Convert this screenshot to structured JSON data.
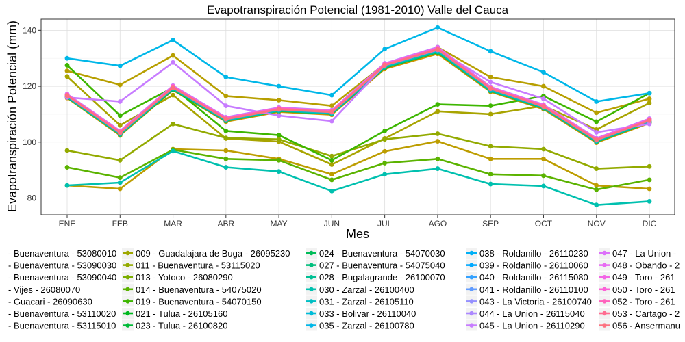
{
  "chart_data": {
    "type": "line",
    "title": "Evapotranspiración Potencial (1981-2010)  Valle del Cauca",
    "xlabel": "Mes",
    "ylabel": "Evapotranspiración Potencial  (mm)",
    "categories": [
      "ENE",
      "FEB",
      "MAR",
      "ABR",
      "MAY",
      "JUN",
      "JUL",
      "AGO",
      "SEP",
      "OCT",
      "NOV",
      "DIC"
    ],
    "yticks": [
      80,
      100,
      120,
      140
    ],
    "ylim": [
      74,
      144
    ],
    "grid": true,
    "legend_position": "bottom",
    "series": [
      {
        "name": "- Buenaventura - 53080010",
        "color": "#F8766D",
        "values": [
          116.5,
          103.2,
          119.4,
          108.0,
          111.5,
          110.5,
          127.2,
          132.8,
          118.8,
          112.5,
          100.5,
          107.5
        ]
      },
      {
        "name": "- Buenaventura - 53090030",
        "color": "#EE8043",
        "values": [
          116.2,
          102.9,
          119.1,
          107.8,
          111.3,
          110.3,
          126.9,
          132.4,
          118.5,
          112.3,
          100.3,
          107.3
        ]
      },
      {
        "name": "- Buenaventura - 53090040",
        "color": "#E08A00",
        "values": [
          116.0,
          102.6,
          118.9,
          107.5,
          111.0,
          110.0,
          126.5,
          132.0,
          118.2,
          112.0,
          100.0,
          107.0
        ]
      },
      {
        "name": "- Vijes - 26080070",
        "color": "#D09400",
        "values": [
          115.8,
          102.4,
          118.6,
          107.3,
          110.8,
          109.8,
          126.2,
          131.6,
          118.0,
          111.8,
          99.8,
          106.8
        ]
      },
      {
        "name": "- Guacari - 26090630",
        "color": "#BD9D00",
        "values": [
          84.5,
          83.3,
          97.5,
          97.0,
          94.0,
          88.5,
          96.7,
          100.3,
          94.0,
          94.0,
          84.5,
          83.3
        ]
      },
      {
        "name": "- Buenaventura - 53110020",
        "color": "#B79F00",
        "values": [
          125.5,
          120.5,
          131.0,
          116.5,
          115.0,
          113.0,
          128.0,
          134.0,
          123.3,
          120.0,
          110.5,
          115.5
        ]
      },
      {
        "name": "- Buenaventura - 53115010",
        "color": "#A8A400",
        "values": [
          123.5,
          106.0,
          116.8,
          101.3,
          100.2,
          92.0,
          101.3,
          111.0,
          110.0,
          113.0,
          104.5,
          114.0
        ]
      },
      {
        "name": "009 - Guadalajara de Buga - 26095230",
        "color": "#9EA700",
        "values": [
          116.3,
          102.9,
          119.2,
          107.9,
          111.4,
          110.4,
          127.0,
          132.5,
          118.6,
          112.4,
          100.4,
          107.4
        ]
      },
      {
        "name": "011 - Buenaventura - 53115020",
        "color": "#93AA00",
        "values": [
          97.0,
          93.5,
          106.5,
          101.5,
          101.0,
          95.0,
          101.0,
          103.0,
          98.5,
          97.5,
          90.5,
          91.3
        ]
      },
      {
        "name": "013 - Yotoco - 26080290",
        "color": "#7CAE00",
        "values": [
          116.1,
          102.8,
          119.0,
          107.7,
          111.2,
          110.2,
          126.8,
          132.3,
          118.4,
          112.2,
          100.2,
          107.2
        ]
      },
      {
        "name": "014 - Buenaventura - 54075020",
        "color": "#5BB300",
        "values": [
          91.0,
          87.3,
          97.3,
          94.0,
          93.5,
          86.5,
          92.5,
          94.0,
          88.5,
          88.0,
          83.0,
          86.5
        ]
      },
      {
        "name": "019 - Buenaventura - 54070150",
        "color": "#3DB600",
        "values": [
          127.5,
          109.5,
          119.5,
          104.0,
          102.5,
          93.5,
          104.0,
          113.5,
          113.0,
          116.5,
          107.3,
          117.5
        ]
      },
      {
        "name": "021 - Tulua - 26105160",
        "color": "#00B81F",
        "values": [
          116.4,
          103.1,
          119.3,
          108.1,
          111.6,
          110.6,
          127.3,
          132.9,
          118.9,
          112.6,
          100.6,
          107.6
        ]
      },
      {
        "name": "023 - Tulua - 26100820",
        "color": "#00BA38",
        "values": [
          116.0,
          102.7,
          118.8,
          107.6,
          111.1,
          110.1,
          126.6,
          132.1,
          118.3,
          112.1,
          100.1,
          107.1
        ]
      },
      {
        "name": "024 - Buenaventura - 54070030",
        "color": "#00BC59",
        "values": [
          116.2,
          103.0,
          119.1,
          107.9,
          111.3,
          110.3,
          127.0,
          132.6,
          118.6,
          112.4,
          100.4,
          107.4
        ]
      },
      {
        "name": "027 - Buenaventura - 54075040",
        "color": "#00BF7D",
        "values": [
          116.5,
          103.3,
          119.5,
          108.2,
          111.7,
          110.7,
          127.4,
          133.0,
          119.0,
          112.7,
          100.7,
          107.7
        ]
      },
      {
        "name": "028 - Bugalagrande - 26100070",
        "color": "#00C094",
        "values": [
          116.1,
          102.8,
          119.0,
          107.7,
          111.2,
          110.2,
          126.8,
          132.3,
          118.4,
          112.2,
          100.2,
          107.2
        ]
      },
      {
        "name": "030 - Zarzal - 26100400",
        "color": "#00C0AF",
        "values": [
          84.5,
          85.5,
          96.8,
          91.0,
          89.5,
          82.5,
          88.5,
          90.5,
          85.0,
          84.3,
          77.5,
          78.8
        ]
      },
      {
        "name": "031 - Zarzal - 26105110",
        "color": "#00BFC4",
        "values": [
          116.3,
          103.0,
          119.2,
          107.9,
          111.4,
          110.4,
          127.1,
          132.7,
          118.7,
          112.5,
          100.5,
          107.5
        ]
      },
      {
        "name": "033 - Bolivar - 26110040",
        "color": "#00BCD8",
        "values": [
          116.4,
          103.2,
          119.4,
          108.1,
          111.6,
          110.6,
          127.3,
          132.9,
          118.9,
          112.6,
          100.6,
          107.6
        ]
      },
      {
        "name": "035 - Zarzal - 26100780",
        "color": "#00B7E8",
        "values": [
          130.0,
          127.3,
          136.5,
          123.3,
          120.0,
          116.8,
          133.3,
          141.0,
          132.5,
          125.0,
          114.5,
          117.5
        ]
      },
      {
        "name": "038 - Roldanillo - 26110230",
        "color": "#00B0F6",
        "values": [
          116.6,
          103.4,
          119.6,
          108.3,
          111.8,
          110.8,
          127.5,
          133.1,
          119.1,
          112.8,
          100.8,
          107.8
        ]
      },
      {
        "name": "039 - Roldanillo - 26110060",
        "color": "#00A9FF",
        "values": [
          116.5,
          103.3,
          119.5,
          108.2,
          111.7,
          110.7,
          127.5,
          133.2,
          119.1,
          112.7,
          100.7,
          107.7
        ]
      },
      {
        "name": "040 - Roldanillo - 26115080",
        "color": "#35A2FF",
        "values": [
          116.7,
          103.5,
          119.7,
          108.4,
          111.9,
          110.9,
          127.6,
          133.3,
          119.2,
          112.9,
          100.9,
          107.9
        ]
      },
      {
        "name": "041 - Roldanillo - 26110100",
        "color": "#619CFF",
        "values": [
          116.8,
          103.6,
          119.8,
          108.5,
          112.0,
          111.0,
          127.8,
          133.5,
          119.4,
          113.0,
          101.0,
          108.0
        ]
      },
      {
        "name": "043 - La Victoria - 26100740",
        "color": "#9590FF",
        "values": [
          117.0,
          103.8,
          120.0,
          108.7,
          112.2,
          111.2,
          128.0,
          133.8,
          119.6,
          113.2,
          101.2,
          108.2
        ]
      },
      {
        "name": "044 - La Union - 26115040",
        "color": "#AC88FF",
        "values": [
          117.2,
          104.0,
          120.2,
          108.9,
          112.4,
          111.4,
          128.2,
          134.0,
          119.8,
          113.4,
          101.4,
          108.4
        ]
      },
      {
        "name": "045 - La Union - 26110290",
        "color": "#C77CFF",
        "values": [
          116.0,
          114.5,
          128.5,
          113.0,
          109.5,
          107.5,
          127.5,
          133.0,
          121.5,
          115.5,
          103.5,
          106.5
        ]
      },
      {
        "name": "047 - La Union -",
        "color": "#DC71FA",
        "values": [
          117.1,
          103.9,
          120.1,
          108.8,
          112.3,
          111.3,
          128.1,
          133.9,
          119.7,
          113.3,
          101.3,
          108.3
        ]
      },
      {
        "name": "048 - Obando - 2",
        "color": "#E76BF3",
        "values": [
          116.9,
          103.7,
          119.9,
          108.6,
          112.1,
          111.1,
          127.9,
          133.6,
          119.5,
          113.1,
          101.1,
          108.1
        ]
      },
      {
        "name": "049 - Toro - 261",
        "color": "#F365E6",
        "values": [
          117.0,
          103.8,
          120.0,
          108.7,
          112.2,
          111.2,
          128.0,
          133.7,
          119.6,
          113.2,
          101.2,
          108.2
        ]
      },
      {
        "name": "050 - Toro - 261",
        "color": "#FB61D7",
        "values": [
          116.8,
          103.5,
          119.7,
          108.4,
          111.9,
          110.9,
          127.7,
          133.4,
          119.3,
          112.9,
          100.9,
          107.9
        ]
      },
      {
        "name": "052 - Toro - 261",
        "color": "#FF62BC",
        "values": [
          116.9,
          103.6,
          119.8,
          108.5,
          112.0,
          111.0,
          127.8,
          133.5,
          119.4,
          113.0,
          101.0,
          108.0
        ]
      },
      {
        "name": "053 - Cartago - 2",
        "color": "#FF6C91",
        "values": [
          116.7,
          103.4,
          119.6,
          108.3,
          111.8,
          110.8,
          127.6,
          133.2,
          119.2,
          112.8,
          100.8,
          107.8
        ]
      },
      {
        "name": "056 - Ansermanu",
        "color": "#FC717F",
        "values": [
          116.6,
          103.3,
          119.5,
          108.2,
          111.7,
          110.7,
          127.5,
          133.1,
          119.1,
          112.7,
          100.7,
          107.7
        ]
      }
    ]
  }
}
